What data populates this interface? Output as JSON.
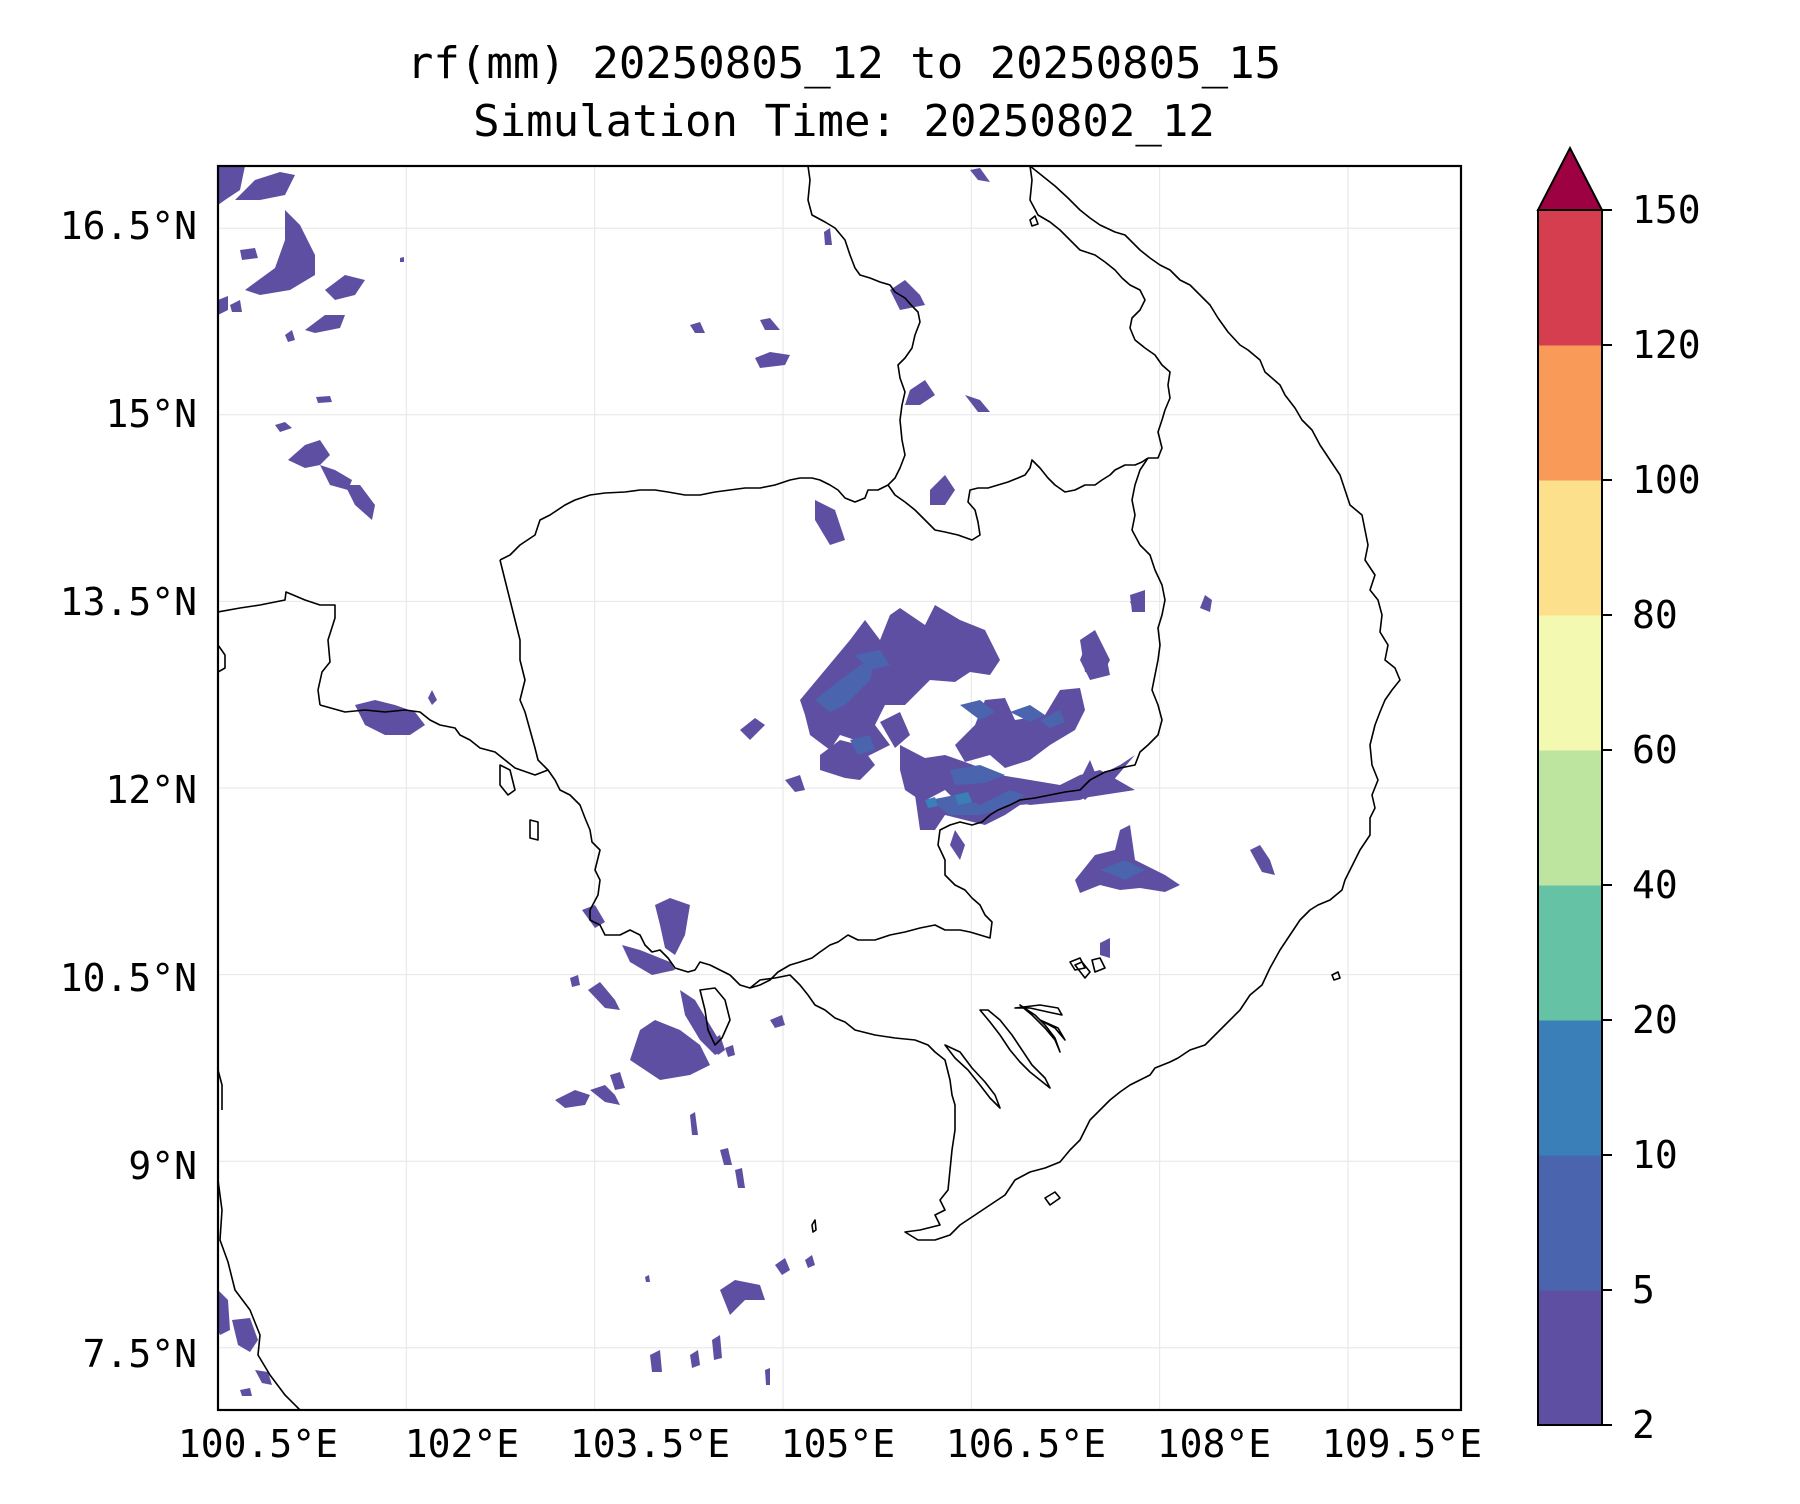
{
  "figure": {
    "title_line1": "rf(mm) 20250805_12 to 20250805_15",
    "title_line2": "Simulation Time: 20250802_12"
  },
  "map": {
    "lon_ticks": [
      "100.5°E",
      "102°E",
      "103.5°E",
      "105°E",
      "106.5°E",
      "108°E",
      "109.5°E"
    ],
    "lat_ticks": [
      "16.5°N",
      "15°N",
      "13.5°N",
      "12°N",
      "10.5°N",
      "9°N",
      "7.5°N"
    ],
    "lon_range": [
      100.5,
      110.4
    ],
    "lat_range": [
      7.0,
      17.0
    ],
    "gridlines": true
  },
  "colorbar": {
    "levels": [
      2,
      5,
      10,
      20,
      40,
      60,
      80,
      100,
      120,
      150
    ],
    "labels": [
      "2",
      "5",
      "10",
      "20",
      "40",
      "60",
      "80",
      "100",
      "120",
      "150"
    ],
    "colors": [
      "#5e4fa2",
      "#4a64ad",
      "#3a7fb8",
      "#66c2a5",
      "#bde59f",
      "#f3f9b0",
      "#fde08b",
      "#fa9a58",
      "#d53e4f"
    ],
    "extend_color": "#9e0142",
    "extend": "max"
  }
}
